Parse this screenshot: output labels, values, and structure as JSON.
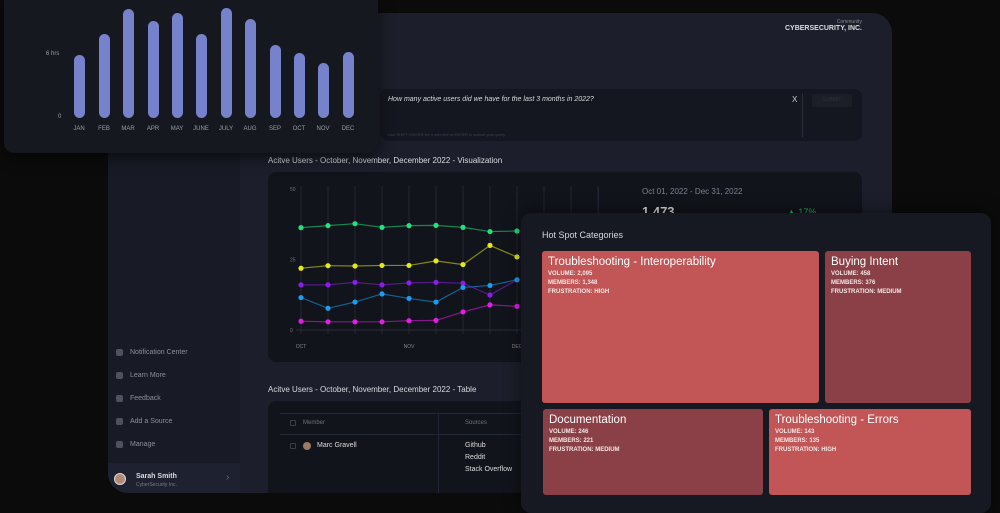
{
  "header": {
    "community_label": "Community",
    "org_name": "CYBERSECURITY, INC."
  },
  "query": {
    "text": "How many active users did we have for the last 3 months in 2022?",
    "hint": "Use SHIFT+ENTER for a new line or ENTER to submit your query",
    "clear_label": "X",
    "submit_label": "SUBMIT"
  },
  "sidebar": {
    "items": [
      {
        "label": "Notification Center",
        "icon": "bell-icon"
      },
      {
        "label": "Learn More",
        "icon": "graduation-cap-icon"
      },
      {
        "label": "Feedback",
        "icon": "megaphone-icon"
      },
      {
        "label": "Add a Source",
        "icon": "plus-circle-icon"
      },
      {
        "label": "Manage",
        "icon": "list-icon"
      }
    ],
    "user": {
      "name": "Sarah Smith",
      "org": "CyberSecurity Inc."
    }
  },
  "visualization": {
    "title": "Acitve Users - October, November, December 2022 -  Visualization",
    "date_range": "Oct 01, 2022 - Dec 31, 2022",
    "total": "1,473",
    "change": "▲ 17%"
  },
  "table": {
    "title": "Acitve Users - October, November, December 2022 -  Table",
    "columns": [
      "Member",
      "Sources"
    ],
    "rows": [
      {
        "member": "Marc Gravell",
        "sources": [
          "Github",
          "Reddit",
          "Stack Overflow"
        ]
      }
    ]
  },
  "hotspot": {
    "title": "Hot Spot Categories",
    "tiles": [
      {
        "name": "Troubleshooting - Interoperability",
        "volume": "VOLUME: 2,095",
        "members": "MEMBERS: 1,348",
        "frustration": "FRUSTRATION: HIGH",
        "color": "#c25555"
      },
      {
        "name": "Buying Intent",
        "volume": "VOLUME: 458",
        "members": "MEMBERS: 376",
        "frustration": "FRUSTRATION: MEDIUM",
        "color": "#8a4046"
      },
      {
        "name": "Documentation",
        "volume": "VOLUME: 246",
        "members": "MEMBERS: 221",
        "frustration": "FRUSTRATION: MEDIUM",
        "color": "#8a4046"
      },
      {
        "name": "Troubleshooting - Errors",
        "volume": "VOLUME: 143",
        "members": "MEMBERS: 135",
        "frustration": "FRUSTRATION: HIGH",
        "color": "#c25555"
      }
    ]
  },
  "chart_data": [
    {
      "type": "bar",
      "title": "",
      "categories": [
        "JAN",
        "FEB",
        "MAR",
        "APR",
        "MAY",
        "JUNE",
        "JULY",
        "AUG",
        "SEP",
        "OCT",
        "NOV",
        "DEC"
      ],
      "values": [
        6,
        8,
        10.4,
        9.2,
        10,
        8,
        10.5,
        9.4,
        7,
        6.2,
        5.2,
        6.3
      ],
      "yticks": [
        "0",
        "6 hrs"
      ],
      "ylim": [
        0,
        11
      ],
      "color": "#7683cc"
    },
    {
      "type": "line",
      "title": "Acitve Users - October, November, December 2022 -  Visualization",
      "xticks": [
        "OCT",
        "NOV",
        "DEC"
      ],
      "yticks": [
        "0",
        "25",
        "50"
      ],
      "ylim": [
        0,
        50
      ],
      "series": [
        {
          "name": "green",
          "color": "#1ee37a",
          "values": [
            36.3,
            37,
            37.7,
            36.4,
            37,
            37.1,
            36.4,
            34.9,
            35.1
          ]
        },
        {
          "name": "yellow",
          "color": "#e3e81a",
          "values": [
            21.9,
            22.8,
            22.7,
            22.9,
            22.9,
            24.5,
            23.2,
            30,
            25.9
          ]
        },
        {
          "name": "purple",
          "color": "#8a1ee8",
          "values": [
            16,
            16,
            16.9,
            16,
            16.7,
            16.9,
            16.6,
            12.4,
            17.8
          ]
        },
        {
          "name": "blue",
          "color": "#1a9cf0",
          "values": [
            11.5,
            7.7,
            9.9,
            12.8,
            11.2,
            9.9,
            15.1,
            15.8,
            17.8
          ]
        },
        {
          "name": "magenta",
          "color": "#e01ee8",
          "values": [
            3.1,
            2.9,
            2.9,
            2.9,
            3.3,
            3.4,
            6.4,
            8.9,
            8.4
          ]
        }
      ]
    }
  ]
}
